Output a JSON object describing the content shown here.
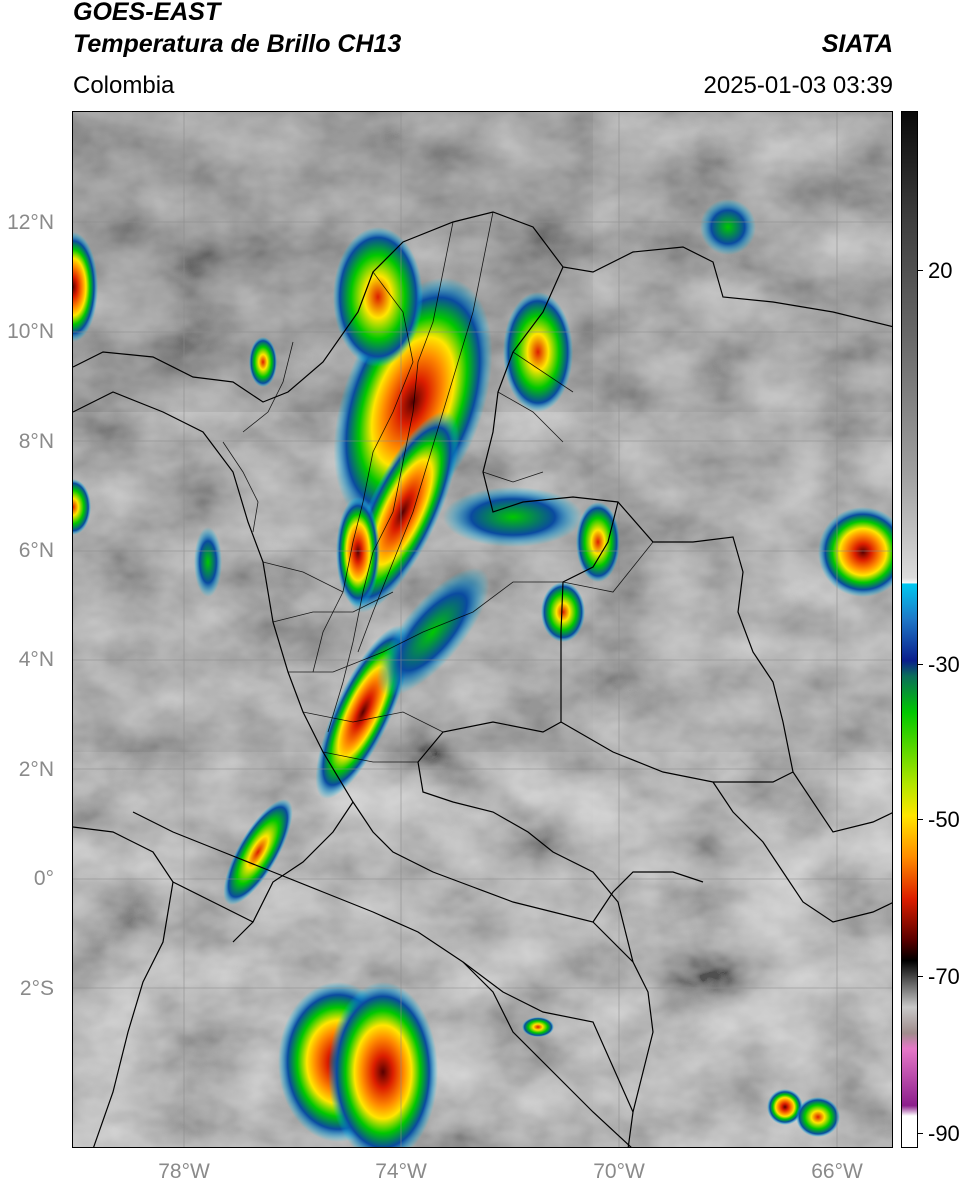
{
  "header": {
    "satellite": "GOES-EAST",
    "product": "Temperatura de Brillo CH13",
    "organization": "SIATA",
    "region": "Colombia",
    "timestamp": "2025-01-03 03:39"
  },
  "axes": {
    "lat_labels": [
      "12°N",
      "10°N",
      "8°N",
      "6°N",
      "4°N",
      "2°N",
      "0°",
      "2°S"
    ],
    "lon_labels": [
      "78°W",
      "74°W",
      "70°W",
      "66°W"
    ]
  },
  "colorbar": {
    "tick_labels": [
      "20",
      "-30",
      "-50",
      "-70",
      "-90"
    ],
    "colors": {
      "warm_gray": "#6a6a6a",
      "light_gray": "#dcdcdc",
      "cyan": "#00c8f0",
      "dark_blue": "#0a1e8c",
      "green": "#00c800",
      "yellow": "#ffe600",
      "orange": "#ff8c00",
      "red": "#dc1e00",
      "dark_red": "#5a0000",
      "black": "#000000",
      "magenta": "#e678c8",
      "purple": "#8c1e8c"
    }
  }
}
